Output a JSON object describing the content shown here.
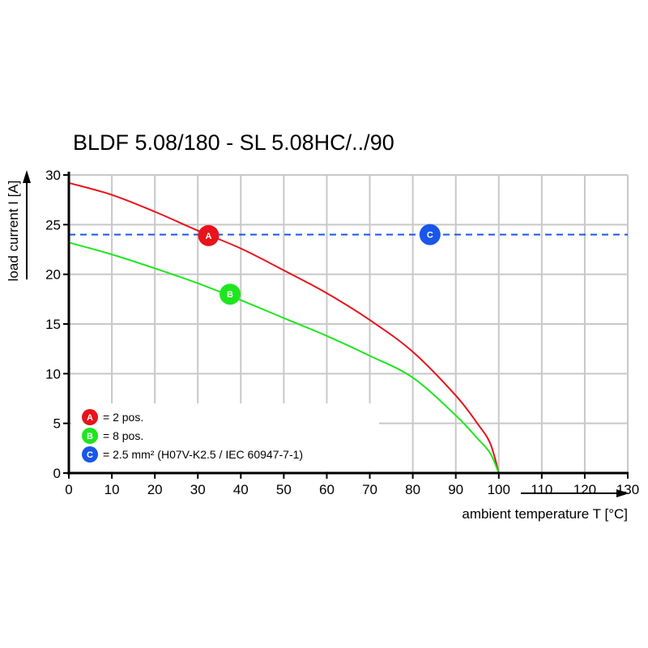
{
  "chart_data": {
    "type": "line",
    "title": "BLDF 5.08/180 - SL 5.08HC/../90",
    "xlabel": "ambient temperature T [°C]",
    "ylabel": "load current I [A]",
    "xlim": [
      0,
      130
    ],
    "ylim": [
      0,
      30
    ],
    "xticks": [
      "0",
      "10",
      "20",
      "30",
      "40",
      "50",
      "60",
      "70",
      "80",
      "90",
      "100",
      "110",
      "120",
      "130"
    ],
    "yticks": [
      "0",
      "5",
      "10",
      "15",
      "20",
      "25",
      "30"
    ],
    "grid": true,
    "legend_position": "bottom-left",
    "series": [
      {
        "marker": "A",
        "name": "= 2 pos.",
        "color": "#e8131b",
        "x": [
          0,
          10,
          20,
          30,
          40,
          50,
          60,
          70,
          80,
          90,
          95,
          98,
          100
        ],
        "y": [
          29.2,
          28.0,
          26.3,
          24.4,
          22.6,
          20.4,
          18.1,
          15.4,
          12.2,
          7.8,
          5.0,
          3.0,
          0
        ]
      },
      {
        "marker": "B",
        "name": "= 8 pos.",
        "color": "#1ee61e",
        "x": [
          0,
          10,
          20,
          30,
          40,
          50,
          60,
          70,
          80,
          90,
          95,
          98,
          100
        ],
        "y": [
          23.2,
          22.0,
          20.6,
          19.1,
          17.4,
          15.6,
          13.8,
          11.8,
          9.6,
          5.8,
          3.5,
          2.0,
          0
        ]
      },
      {
        "marker": "C",
        "name": "= 2.5 mm² (H07V-K2.5 / IEC 60947-7-1)",
        "color": "#1a56e8",
        "style": "dashed",
        "x": [
          0,
          130
        ],
        "y": [
          24,
          24
        ]
      }
    ],
    "marker_points": [
      {
        "label": "A",
        "x": 32.5,
        "y": 23.9
      },
      {
        "label": "B",
        "x": 37.5,
        "y": 18.0
      },
      {
        "label": "C",
        "x": 84,
        "y": 24.0
      }
    ]
  }
}
